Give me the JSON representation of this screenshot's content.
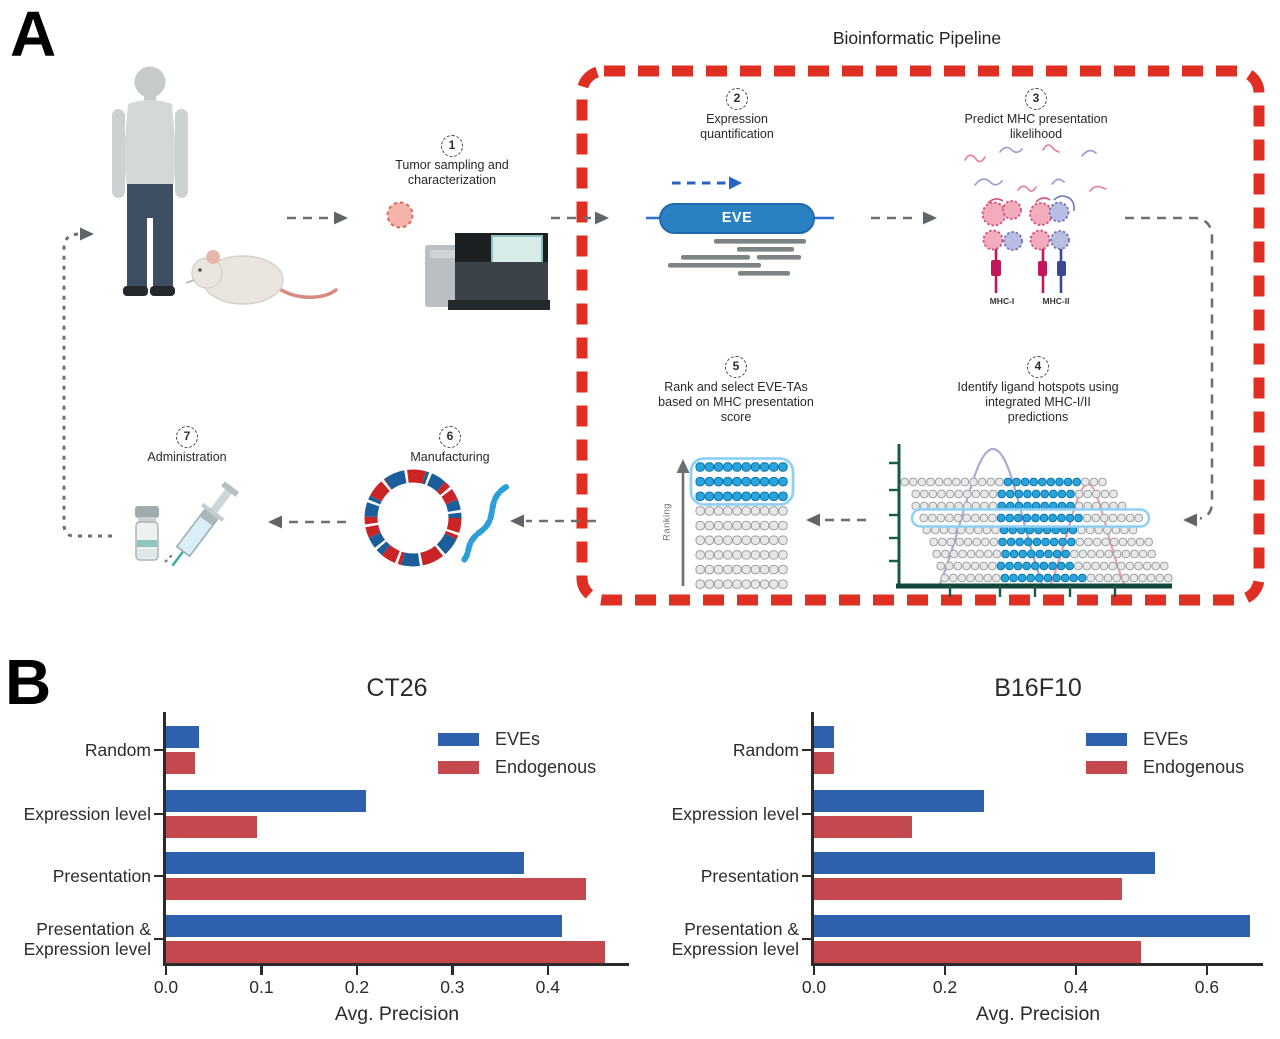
{
  "panel_a": {
    "label": "A",
    "pipeline_box_title": "Bioinformatic Pipeline",
    "pipeline_border_color": "#df2f23",
    "steps": [
      {
        "number": "1",
        "label": "Tumor sampling and\ncharacterization"
      },
      {
        "number": "2",
        "label": "Expression\nquantification"
      },
      {
        "number": "3",
        "label": "Predict MHC presentation\nlikelihood"
      },
      {
        "number": "4",
        "label": "Identify ligand hotspots using\nintegrated MHC-I/II\npredictions"
      },
      {
        "number": "5",
        "label": "Rank and select EVE-TAs\nbased on MHC presentation\nscore"
      },
      {
        "number": "6",
        "label": "Manufacturing"
      },
      {
        "number": "7",
        "label": "Administration"
      }
    ],
    "eve_gene_label": "EVE",
    "mhc1_label": "MHC-I",
    "mhc2_label": "MHC-II",
    "ranking_axis_label": "Ranking"
  },
  "panel_b": {
    "label": "B"
  },
  "chart_data": [
    {
      "type": "bar",
      "orientation": "horizontal",
      "title": "CT26",
      "categories": [
        "Random",
        "Expression level",
        "Presentation",
        "Presentation &\nExpression level"
      ],
      "series": [
        {
          "name": "EVEs",
          "color": "#2d61ae",
          "values": [
            0.035,
            0.21,
            0.375,
            0.415
          ]
        },
        {
          "name": "Endogenous",
          "color": "#c4494e",
          "values": [
            0.03,
            0.095,
            0.44,
            0.46
          ]
        }
      ],
      "xlabel": "Avg. Precision",
      "xlim": [
        0,
        0.484
      ],
      "xticks": [
        0,
        0.1,
        0.2,
        0.3,
        0.4
      ],
      "xtick_labels": [
        "0.0",
        "0.1",
        "0.2",
        "0.3",
        "0.4"
      ],
      "legend_position": "upper right",
      "grid": false
    },
    {
      "type": "bar",
      "orientation": "horizontal",
      "title": "B16F10",
      "categories": [
        "Random",
        "Expression level",
        "Presentation",
        "Presentation &\nExpression level"
      ],
      "series": [
        {
          "name": "EVEs",
          "color": "#2d61ae",
          "values": [
            0.03,
            0.26,
            0.52,
            0.665
          ]
        },
        {
          "name": "Endogenous",
          "color": "#c4494e",
          "values": [
            0.03,
            0.15,
            0.47,
            0.5
          ]
        }
      ],
      "xlabel": "Avg. Precision",
      "xlim": [
        0,
        0.684
      ],
      "xticks": [
        0,
        0.2,
        0.4,
        0.6
      ],
      "xtick_labels": [
        "0.0",
        "0.2",
        "0.4",
        "0.6"
      ],
      "legend_position": "upper right",
      "grid": false
    }
  ]
}
